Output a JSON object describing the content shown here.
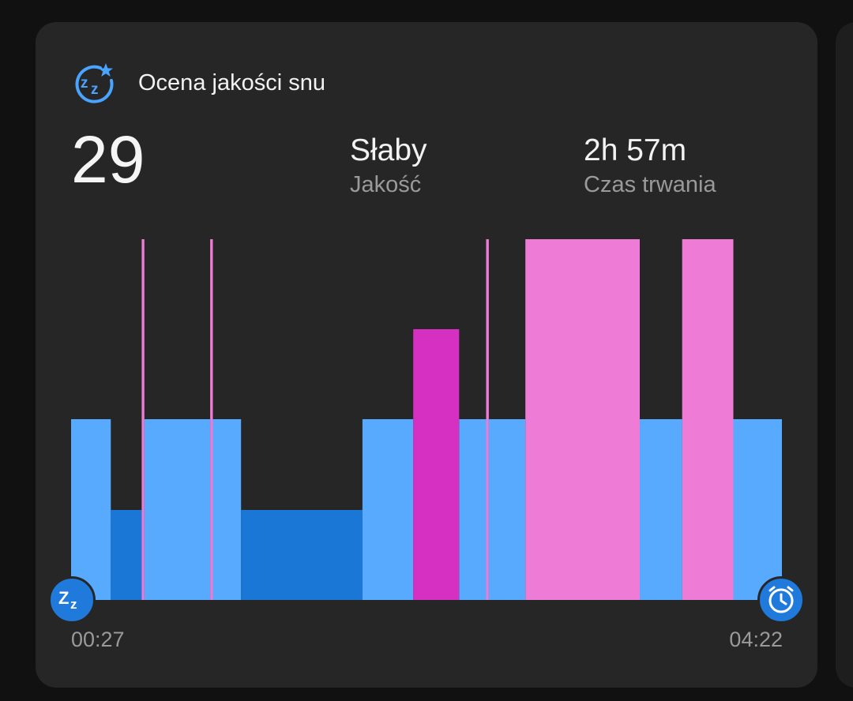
{
  "header": {
    "title": "Ocena jakości snu",
    "icon": "sleep-zz-star-icon"
  },
  "score": "29",
  "quality": {
    "value": "Słaby",
    "label": "Jakość"
  },
  "duration": {
    "value": "2h 57m",
    "label": "Czas trwania"
  },
  "colors": {
    "card": "#262626",
    "light": "#58aaff",
    "deep": "#1b77d6",
    "rem": "#ee7bd6",
    "awake": "#d630c3",
    "marker": "#1f7adb"
  },
  "chart_data": {
    "type": "bar",
    "title": "",
    "xlabel": "",
    "ylabel": "",
    "x_start": "00:27",
    "x_end": "04:22",
    "start_icon": "sleep-zz-icon",
    "end_icon": "alarm-clock-icon",
    "y_levels": {
      "deep": 1,
      "light": 2,
      "awake": 3,
      "rem": 4
    },
    "segments": [
      {
        "stage": "light",
        "start_min": 0,
        "end_min": 9
      },
      {
        "stage": "deep",
        "start_min": 9,
        "end_min": 16
      },
      {
        "stage": "rem",
        "start_min": 16,
        "end_min": 16.6
      },
      {
        "stage": "light",
        "start_min": 16.6,
        "end_min": 31.5
      },
      {
        "stage": "rem",
        "start_min": 31.5,
        "end_min": 32.1
      },
      {
        "stage": "light",
        "start_min": 32.1,
        "end_min": 38.5
      },
      {
        "stage": "deep",
        "start_min": 38.5,
        "end_min": 66
      },
      {
        "stage": "light",
        "start_min": 66,
        "end_min": 77.5
      },
      {
        "stage": "awake",
        "start_min": 77.5,
        "end_min": 87.9
      },
      {
        "stage": "light",
        "start_min": 87.9,
        "end_min": 94
      },
      {
        "stage": "rem",
        "start_min": 94,
        "end_min": 94.6
      },
      {
        "stage": "light",
        "start_min": 94.6,
        "end_min": 102.9
      },
      {
        "stage": "rem",
        "start_min": 102.9,
        "end_min": 128.8
      },
      {
        "stage": "light",
        "start_min": 128.8,
        "end_min": 138.4
      },
      {
        "stage": "rem",
        "start_min": 138.4,
        "end_min": 150
      },
      {
        "stage": "light",
        "start_min": 150,
        "end_min": 161
      }
    ]
  }
}
